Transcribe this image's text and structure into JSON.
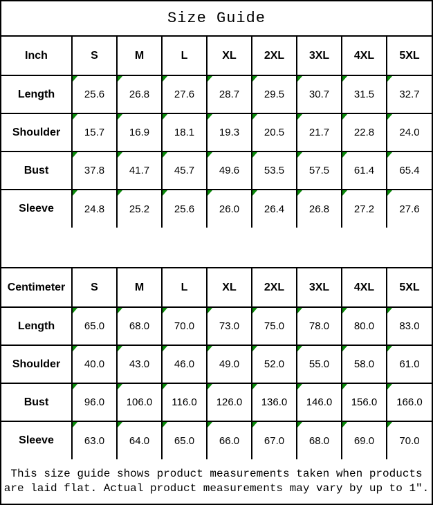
{
  "title": "Size Guide",
  "colors": {
    "border": "#000000",
    "background": "#ffffff",
    "cell_marker_green": "#0a8a0a"
  },
  "tables": [
    {
      "unit_label": "Inch",
      "size_headers": [
        "S",
        "M",
        "L",
        "XL",
        "2XL",
        "3XL",
        "4XL",
        "5XL"
      ],
      "rows": [
        {
          "label": "Length",
          "values": [
            "25.6",
            "26.8",
            "27.6",
            "28.7",
            "29.5",
            "30.7",
            "31.5",
            "32.7"
          ]
        },
        {
          "label": "Shoulder",
          "values": [
            "15.7",
            "16.9",
            "18.1",
            "19.3",
            "20.5",
            "21.7",
            "22.8",
            "24.0"
          ]
        },
        {
          "label": "Bust",
          "values": [
            "37.8",
            "41.7",
            "45.7",
            "49.6",
            "53.5",
            "57.5",
            "61.4",
            "65.4"
          ]
        },
        {
          "label": "Sleeve",
          "values": [
            "24.8",
            "25.2",
            "25.6",
            "26.0",
            "26.4",
            "26.8",
            "27.2",
            "27.6"
          ]
        }
      ]
    },
    {
      "unit_label": "Centimeter",
      "size_headers": [
        "S",
        "M",
        "L",
        "XL",
        "2XL",
        "3XL",
        "4XL",
        "5XL"
      ],
      "rows": [
        {
          "label": "Length",
          "values": [
            "65.0",
            "68.0",
            "70.0",
            "73.0",
            "75.0",
            "78.0",
            "80.0",
            "83.0"
          ]
        },
        {
          "label": "Shoulder",
          "values": [
            "40.0",
            "43.0",
            "46.0",
            "49.0",
            "52.0",
            "55.0",
            "58.0",
            "61.0"
          ]
        },
        {
          "label": "Bust",
          "values": [
            "96.0",
            "106.0",
            "116.0",
            "126.0",
            "136.0",
            "146.0",
            "156.0",
            "166.0"
          ]
        },
        {
          "label": "Sleeve",
          "values": [
            "63.0",
            "64.0",
            "65.0",
            "66.0",
            "67.0",
            "68.0",
            "69.0",
            "70.0"
          ]
        }
      ]
    }
  ],
  "footer": {
    "lines": [
      "This size guide shows product measurements taken when products",
      "are laid flat. Actual product measurements may vary by up to 1″."
    ]
  }
}
